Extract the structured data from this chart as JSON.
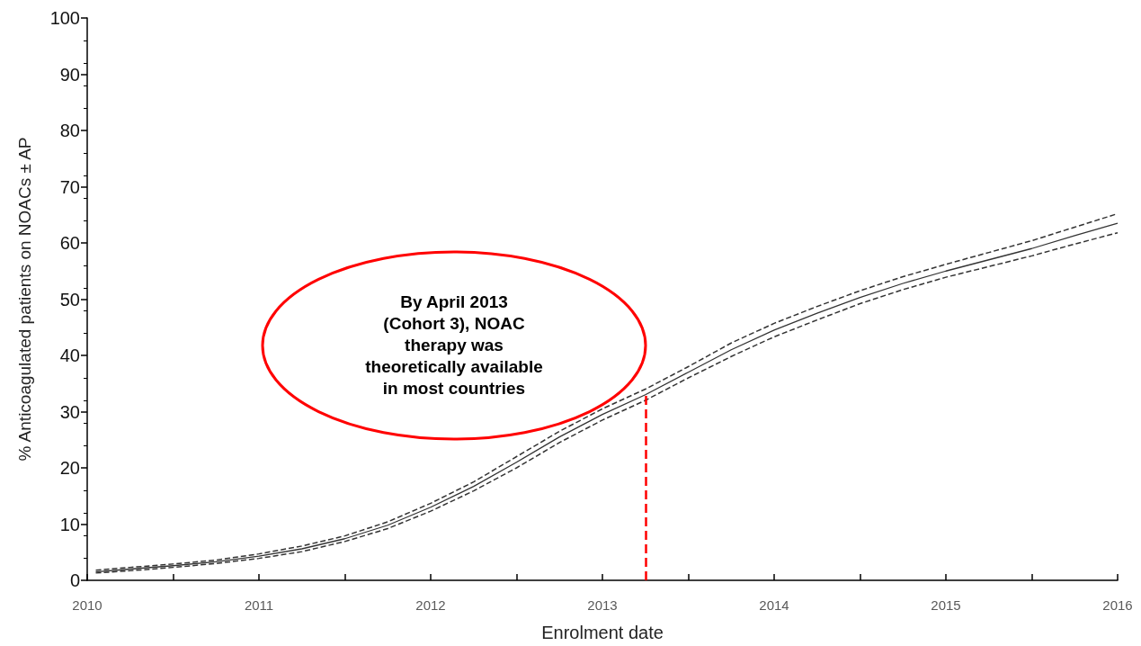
{
  "chart_data": {
    "type": "line",
    "xlabel": "Enrolment date",
    "ylabel": "% Anticoagulated patients on NOACs ± AP",
    "x": [
      2010.05,
      2010.25,
      2010.5,
      2010.75,
      2011,
      2011.25,
      2011.5,
      2011.75,
      2012,
      2012.25,
      2012.5,
      2012.75,
      2013,
      2013.25,
      2013.5,
      2013.75,
      2014,
      2014.25,
      2014.5,
      2014.75,
      2015,
      2015.25,
      2015.5,
      2015.75,
      2016
    ],
    "series": [
      {
        "color": "#333333",
        "line_style": "solid",
        "values": [
          1.5,
          2,
          2.6,
          3.3,
          4.3,
          5.6,
          7.4,
          9.8,
          13,
          16.7,
          21,
          25.5,
          29.5,
          33,
          37,
          41,
          44.5,
          47.5,
          50.3,
          52.8,
          55,
          57,
          59,
          61.3,
          63.5
        ]
      },
      {
        "color": "#333333",
        "line_style": "dashed",
        "values": [
          1.3,
          1.7,
          2.3,
          3,
          3.9,
          5.1,
          6.9,
          9.2,
          12.3,
          15.9,
          20,
          24.5,
          28.5,
          32,
          36,
          39.8,
          43.3,
          46.3,
          49.2,
          51.7,
          53.9,
          55.8,
          57.7,
          59.8,
          61.8
        ]
      },
      {
        "color": "#333333",
        "line_style": "dashed",
        "values": [
          1.8,
          2.3,
          2.9,
          3.6,
          4.7,
          6.1,
          7.9,
          10.4,
          13.7,
          17.5,
          22,
          26.5,
          30.5,
          34,
          38,
          42.2,
          45.7,
          48.7,
          51.5,
          54,
          56.2,
          58.3,
          60.4,
          62.8,
          65.2
        ]
      }
    ],
    "xlim": [
      2010,
      2016
    ],
    "xticks": [
      2010,
      {
        "value": 2010.5,
        "label": null
      },
      2011,
      {
        "value": 2011.5,
        "label": null
      },
      2012,
      {
        "value": 2012.5,
        "label": null
      },
      2013,
      {
        "value": 2013.5,
        "label": null
      },
      2014,
      {
        "value": 2014.5,
        "label": null
      },
      2015,
      {
        "value": 2015.5,
        "label": null
      },
      2016
    ],
    "ylim": [
      0,
      100
    ],
    "yticks": [
      0,
      10,
      20,
      30,
      40,
      50,
      60,
      70,
      80,
      90,
      100
    ],
    "grid": false,
    "marker": "none",
    "ref_lines": [
      {
        "axis": "x",
        "value": 2013.25,
        "color": "#ff0000",
        "line_style": "dashed"
      }
    ],
    "annotations": [
      "By April 2013\n(Cohort 3), NOAC\ntherapy was\ntheoretically available\nin most countries"
    ]
  }
}
